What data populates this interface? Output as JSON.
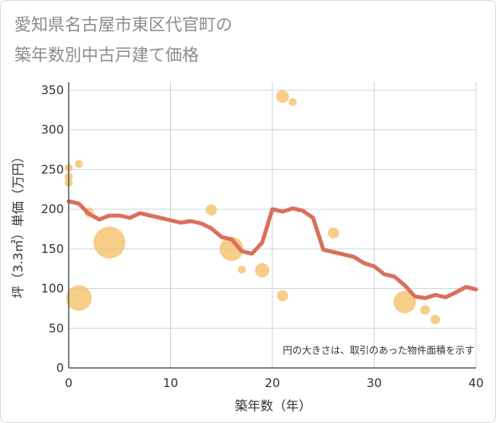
{
  "chart_data": {
    "type": "scatter",
    "title_line1": "愛知県名古屋市東区代官町の",
    "title_line2": "築年数別中古戸建て価格",
    "xlabel": "築年数（年）",
    "ylabel": "坪（3.3㎡）単価（万円）",
    "xlim": [
      0,
      40
    ],
    "ylim": [
      0,
      360
    ],
    "xticks": [
      0,
      10,
      20,
      30,
      40
    ],
    "yticks": [
      0,
      50,
      100,
      150,
      200,
      250,
      300,
      350
    ],
    "note": "円の大きさは、取引のあった物件面積を示す",
    "colors": {
      "bubble": "#f5c06d",
      "line": "#d9705c",
      "grid": "#c9d6e0",
      "axis": "#4d5c66"
    },
    "bubbles": [
      {
        "x": 0,
        "y": 252,
        "size": 5
      },
      {
        "x": 0,
        "y": 241,
        "size": 5
      },
      {
        "x": 0,
        "y": 233,
        "size": 5
      },
      {
        "x": 1,
        "y": 257,
        "size": 5
      },
      {
        "x": 1,
        "y": 88,
        "size": 16
      },
      {
        "x": 2,
        "y": 196,
        "size": 6
      },
      {
        "x": 4,
        "y": 158,
        "size": 20
      },
      {
        "x": 14,
        "y": 199,
        "size": 7
      },
      {
        "x": 16,
        "y": 150,
        "size": 15
      },
      {
        "x": 17,
        "y": 124,
        "size": 5
      },
      {
        "x": 19,
        "y": 123,
        "size": 9
      },
      {
        "x": 21,
        "y": 91,
        "size": 7
      },
      {
        "x": 21,
        "y": 342,
        "size": 8
      },
      {
        "x": 22,
        "y": 335,
        "size": 5
      },
      {
        "x": 26,
        "y": 170,
        "size": 7
      },
      {
        "x": 33,
        "y": 83,
        "size": 14
      },
      {
        "x": 35,
        "y": 73,
        "size": 6
      },
      {
        "x": 36,
        "y": 61,
        "size": 6
      }
    ],
    "trend": {
      "x": [
        0,
        1,
        2,
        3,
        4,
        5,
        6,
        7,
        8,
        9,
        10,
        11,
        12,
        13,
        14,
        15,
        16,
        17,
        18,
        19,
        20,
        21,
        22,
        23,
        24,
        25,
        26,
        27,
        28,
        29,
        30,
        31,
        32,
        33,
        34,
        35,
        36,
        37,
        38,
        39,
        40
      ],
      "y": [
        210,
        207,
        194,
        187,
        192,
        192,
        189,
        195,
        192,
        189,
        186,
        183,
        185,
        182,
        176,
        165,
        162,
        147,
        144,
        158,
        200,
        197,
        201,
        198,
        189,
        149,
        146,
        143,
        140,
        132,
        128,
        118,
        115,
        104,
        90,
        88,
        92,
        89,
        95,
        102,
        99
      ]
    }
  }
}
